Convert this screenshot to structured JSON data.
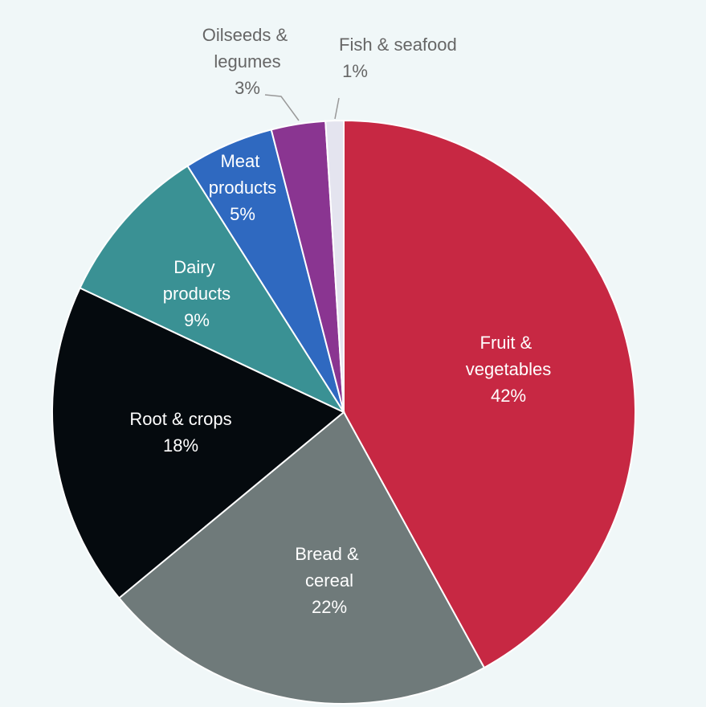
{
  "chart_data": {
    "type": "pie",
    "categories": [
      "Fruit & vegetables",
      "Bread & cereal",
      "Root & crops",
      "Dairy products",
      "Meat products",
      "Oilseeds & legumes",
      "Fish & seafood"
    ],
    "values": [
      42,
      22,
      18,
      9,
      5,
      3,
      1
    ],
    "value_labels": [
      "42%",
      "22%",
      "18%",
      "9%",
      "5%",
      "3%",
      "1%"
    ],
    "colors": [
      "#c72843",
      "#6f7a7a",
      "#050a0e",
      "#3a9194",
      "#2f69c0",
      "#8a3591",
      "#e4e4ef"
    ]
  }
}
